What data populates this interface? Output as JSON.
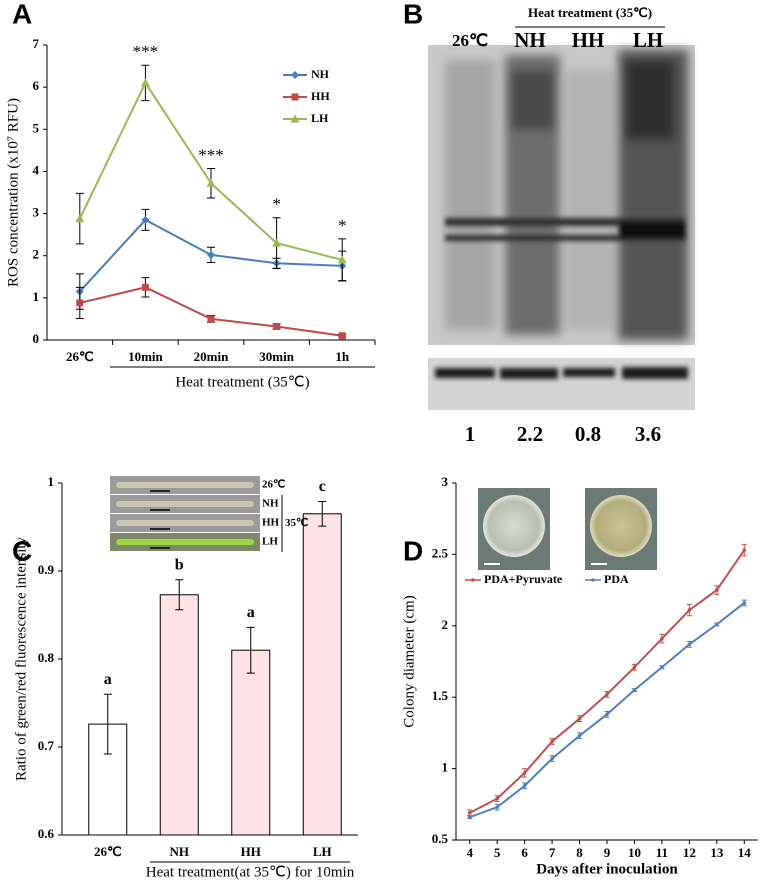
{
  "chart_data": [
    {
      "type": "line",
      "panel_label": "A",
      "categories": [
        "26℃",
        "10min",
        "20min",
        "30min",
        "1h"
      ],
      "ylim": [
        0,
        7
      ],
      "yticks": [
        0,
        1,
        2,
        3,
        4,
        5,
        6,
        7
      ],
      "ylabel": "ROS concentration (x10⁷ RFU)",
      "xlabel": "Heat treatment (35℃)",
      "legend": "top-right",
      "series": [
        {
          "name": "NH",
          "color": "#4a7ebb",
          "marker": "diamond",
          "values": [
            1.15,
            2.85,
            2.02,
            1.82,
            1.76
          ],
          "errors": [
            0.42,
            0.25,
            0.18,
            0.12,
            0.35
          ]
        },
        {
          "name": "HH",
          "color": "#be4b48",
          "marker": "square",
          "values": [
            0.88,
            1.25,
            0.5,
            0.32,
            0.1
          ],
          "errors": [
            0.37,
            0.23,
            0.08,
            0.06,
            0.03
          ]
        },
        {
          "name": "LH",
          "color": "#98b954",
          "marker": "triangle",
          "values": [
            2.88,
            6.1,
            3.72,
            2.3,
            1.9
          ],
          "errors": [
            0.6,
            0.42,
            0.35,
            0.6,
            0.5
          ]
        }
      ],
      "annotations": [
        {
          "text": "***",
          "x": "10min"
        },
        {
          "text": "***",
          "x": "20min"
        },
        {
          "text": "*",
          "x": "30min"
        },
        {
          "text": "*",
          "x": "1h"
        }
      ]
    },
    {
      "type": "bar",
      "panel_label": "C",
      "categories": [
        "26℃",
        "NH",
        "HH",
        "LH"
      ],
      "values": [
        0.726,
        0.873,
        0.81,
        0.965
      ],
      "errors": [
        0.034,
        0.017,
        0.026,
        0.014
      ],
      "value_letters": [
        "a",
        "b",
        "a",
        "c"
      ],
      "colors": [
        "#ffffff",
        "#fde3e3",
        "#fde3e3",
        "#fde3e3"
      ],
      "ylim": [
        0.6,
        1
      ],
      "yticks": [
        0.6,
        0.7,
        0.8,
        0.9,
        1
      ],
      "ylabel": "Ratio of green/red fluorescence intensity",
      "xlabel": "Heat treatment(at 35℃) for 10min",
      "inset": {
        "labels": [
          "26℃",
          "NH",
          "HH",
          "LH"
        ],
        "group_label": "35℃"
      }
    },
    {
      "type": "line",
      "panel_label": "D",
      "x": [
        4,
        5,
        6,
        7,
        8,
        9,
        10,
        11,
        12,
        13,
        14
      ],
      "xlim": [
        3.5,
        14.5
      ],
      "xticks": [
        4,
        5,
        6,
        7,
        8,
        9,
        10,
        11,
        12,
        13,
        14
      ],
      "ylim": [
        0.5,
        3
      ],
      "yticks": [
        0.5,
        1,
        1.5,
        2,
        2.5,
        3
      ],
      "ylabel": "Colony diameter (cm)",
      "xlabel": "Days after inoculation",
      "legend": "top-left",
      "series": [
        {
          "name": "PDA+Pyruvate",
          "color": "#c0504d",
          "values": [
            0.69,
            0.79,
            0.97,
            1.19,
            1.35,
            1.52,
            1.71,
            1.91,
            2.11,
            2.25,
            2.53
          ],
          "errors": [
            0.02,
            0.02,
            0.03,
            0.02,
            0.02,
            0.02,
            0.02,
            0.03,
            0.04,
            0.03,
            0.04
          ]
        },
        {
          "name": "PDA",
          "color": "#4f81bd",
          "values": [
            0.66,
            0.73,
            0.88,
            1.07,
            1.23,
            1.38,
            1.55,
            1.71,
            1.87,
            2.01,
            2.16
          ],
          "errors": [
            0.01,
            0.02,
            0.02,
            0.02,
            0.02,
            0.02,
            0.01,
            0.01,
            0.02,
            0.01,
            0.02
          ]
        }
      ]
    }
  ],
  "blot": {
    "panel_label": "B",
    "header": "Heat treatment (35℃)",
    "lanes": [
      "26℃",
      "NH",
      "HH",
      "LH"
    ],
    "ratios": [
      1,
      2.2,
      0.8,
      3.6
    ]
  }
}
